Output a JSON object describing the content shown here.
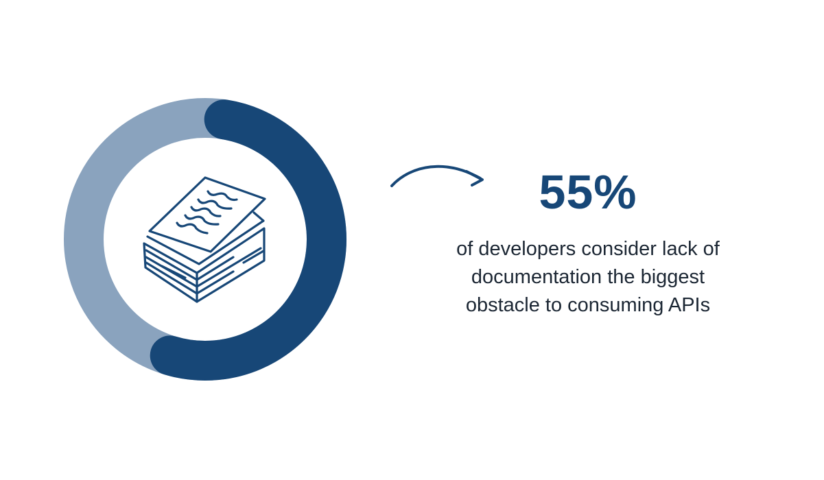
{
  "chart_data": {
    "type": "pie",
    "style": "donut",
    "values": [
      55,
      45
    ],
    "colors": [
      "#174777",
      "#8aa3be"
    ],
    "icon": "document-stack-icon"
  },
  "stat": {
    "value": "55%",
    "description_lines": [
      "of developers consider lack of",
      "documentation the biggest",
      "obstacle to consuming APIs"
    ]
  },
  "colors": {
    "accent": "#174777",
    "text": "#1b2633",
    "track": "#8aa3be"
  }
}
